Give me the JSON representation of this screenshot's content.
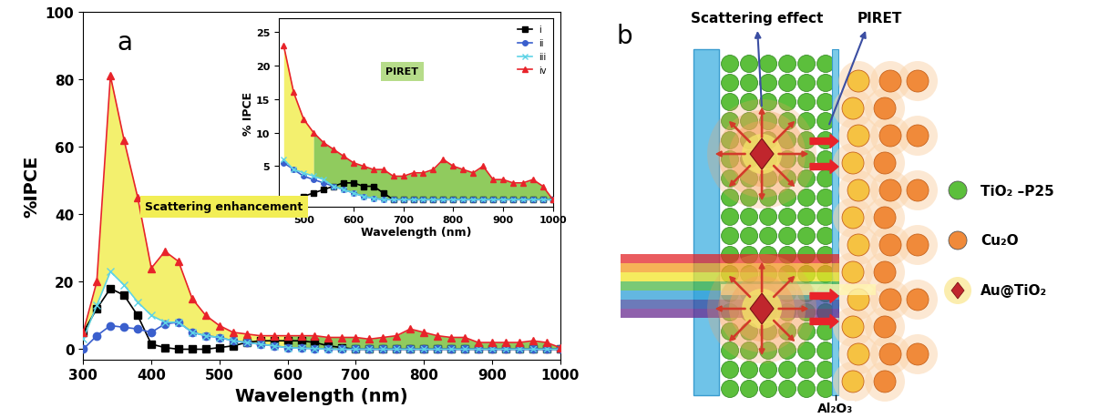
{
  "chart_data": [
    {
      "type": "line",
      "panel": "a",
      "xlabel": "Wavelength (nm)",
      "ylabel": "%IPCE",
      "x": [
        300,
        320,
        340,
        360,
        380,
        400,
        420,
        440,
        460,
        480,
        500,
        520,
        540,
        560,
        580,
        600,
        620,
        640,
        660,
        680,
        700,
        720,
        740,
        760,
        780,
        800,
        820,
        840,
        860,
        880,
        900,
        920,
        940,
        960,
        980,
        1000
      ],
      "xlim": [
        300,
        1000
      ],
      "xticks": [
        300,
        400,
        500,
        600,
        700,
        800,
        900,
        1000
      ],
      "ylim": [
        -3,
        100
      ],
      "yticks": [
        0,
        20,
        40,
        60,
        80,
        100
      ],
      "series": [
        {
          "name": "i",
          "color": "#000000",
          "marker": "square",
          "line_style": "solid",
          "values": [
            5,
            12,
            18,
            16,
            10,
            1.5,
            0.5,
            0,
            0,
            0,
            0.5,
            1,
            2,
            2.5,
            2.5,
            2.5,
            2.5,
            2,
            1,
            0.5,
            0,
            0,
            0,
            0,
            0,
            0,
            0,
            0,
            0,
            0,
            0,
            0,
            0,
            0,
            0,
            0
          ]
        },
        {
          "name": "ii",
          "color": "#3a5fcd",
          "marker": "circle",
          "line_style": "solid",
          "values": [
            0,
            4,
            7,
            6.5,
            6,
            5,
            7.5,
            8,
            5,
            4,
            3.5,
            2.5,
            2,
            1.5,
            1,
            0.5,
            0.3,
            0.2,
            0,
            0,
            0,
            0,
            0,
            0,
            0,
            0,
            0,
            0,
            0,
            0,
            0,
            0,
            0,
            0,
            0,
            0
          ]
        },
        {
          "name": "iii",
          "color": "#5fd3e6",
          "marker": "x",
          "line_style": "solid",
          "values": [
            3,
            13,
            23,
            19,
            14,
            10,
            8,
            8,
            5,
            4,
            3.5,
            2.5,
            2,
            1.5,
            1,
            0.5,
            0.3,
            0.2,
            0,
            0,
            0,
            0,
            0,
            0,
            0,
            0,
            0,
            0,
            0,
            0,
            0,
            0,
            0,
            0,
            0,
            0
          ]
        },
        {
          "name": "iv",
          "color": "#e8232a",
          "marker": "triangle",
          "line_style": "solid",
          "values": [
            5,
            20,
            81,
            62,
            45,
            24,
            29,
            26,
            15,
            10,
            7,
            5,
            4.5,
            4,
            4,
            4,
            4,
            4,
            3.5,
            3.5,
            3.5,
            3,
            3.5,
            4,
            6,
            5,
            4,
            3.5,
            3.5,
            2,
            2,
            2,
            2,
            2.5,
            2,
            0.5
          ]
        }
      ],
      "fills": [
        {
          "text": "Scattering enhancement",
          "color": "#f2ee55",
          "between": [
            "iii",
            "iv"
          ],
          "x_range": [
            300,
            600
          ]
        },
        {
          "color": "#7dc242",
          "between": [
            "iii",
            "iv"
          ],
          "x_range": [
            600,
            1000
          ]
        }
      ]
    },
    {
      "type": "line",
      "inset": true,
      "xlabel": "Wavelength (nm)",
      "ylabel": "% IPCE",
      "legend": "upper right",
      "x": [
        460,
        480,
        500,
        520,
        540,
        560,
        580,
        600,
        620,
        640,
        660,
        680,
        700,
        720,
        740,
        760,
        780,
        800,
        820,
        840,
        860,
        880,
        900,
        920,
        940,
        960,
        980,
        1000
      ],
      "xlim": [
        450,
        1000
      ],
      "xticks": [
        500,
        600,
        700,
        800,
        900,
        1000
      ],
      "ylim": [
        -1,
        27
      ],
      "yticks": [
        0,
        5,
        10,
        15,
        20,
        25
      ],
      "series": [
        {
          "name": "i",
          "color": "#000000",
          "marker": "square",
          "line_style": "solid",
          "values": [
            0,
            0,
            0.5,
            1,
            1.5,
            2,
            2.5,
            2.5,
            2,
            2,
            1,
            0,
            0,
            0,
            0,
            0,
            0,
            0,
            0,
            0,
            0,
            0,
            0,
            0,
            0,
            0,
            0,
            0
          ]
        },
        {
          "name": "ii",
          "color": "#3a5fcd",
          "marker": "circle",
          "line_style": "solid",
          "values": [
            5.5,
            4.5,
            3.5,
            3,
            2.5,
            2,
            1.5,
            1,
            0.5,
            0.2,
            0,
            0,
            0,
            0,
            0,
            0,
            0,
            0,
            0,
            0,
            0,
            0,
            0,
            0,
            0,
            0,
            0,
            0
          ]
        },
        {
          "name": "iii",
          "color": "#5fd3e6",
          "marker": "x",
          "line_style": "solid",
          "values": [
            6,
            4.5,
            4,
            3.5,
            3,
            2,
            1.5,
            1,
            0.5,
            0.2,
            0,
            0,
            0,
            0,
            0,
            0,
            0,
            0,
            0,
            0,
            0,
            0,
            0,
            0,
            0,
            0,
            0,
            0
          ]
        },
        {
          "name": "iv",
          "color": "#e8232a",
          "marker": "triangle",
          "line_style": "solid",
          "values": [
            23,
            16,
            12,
            10,
            8.5,
            7.5,
            6.5,
            5.5,
            5,
            4.5,
            4.5,
            3.5,
            3.5,
            4,
            4,
            4.5,
            6,
            5,
            4.5,
            4,
            5,
            3,
            3,
            2.5,
            2.5,
            3,
            2,
            0
          ]
        }
      ],
      "fills": [
        {
          "color": "#f2ee55",
          "between": [
            "iii",
            "iv"
          ],
          "x_range": [
            460,
            520
          ]
        },
        {
          "text": "PIRET",
          "color": "#7dc242",
          "between": [
            "iii",
            "iv"
          ],
          "x_range": [
            520,
            1000
          ]
        }
      ]
    }
  ],
  "diagram": {
    "panel": "b",
    "labels": {
      "scattering": "Scattering effect",
      "transfer": "PIRET",
      "spacer": "Al₂O₃"
    },
    "legend": [
      {
        "text": "TiO₂ –P25",
        "color": "#5cbf3c"
      },
      {
        "text": "Cu₂O",
        "color": "#f08a3a"
      },
      {
        "text": "Au@TiO₂",
        "color": "#f5e26a"
      }
    ]
  }
}
